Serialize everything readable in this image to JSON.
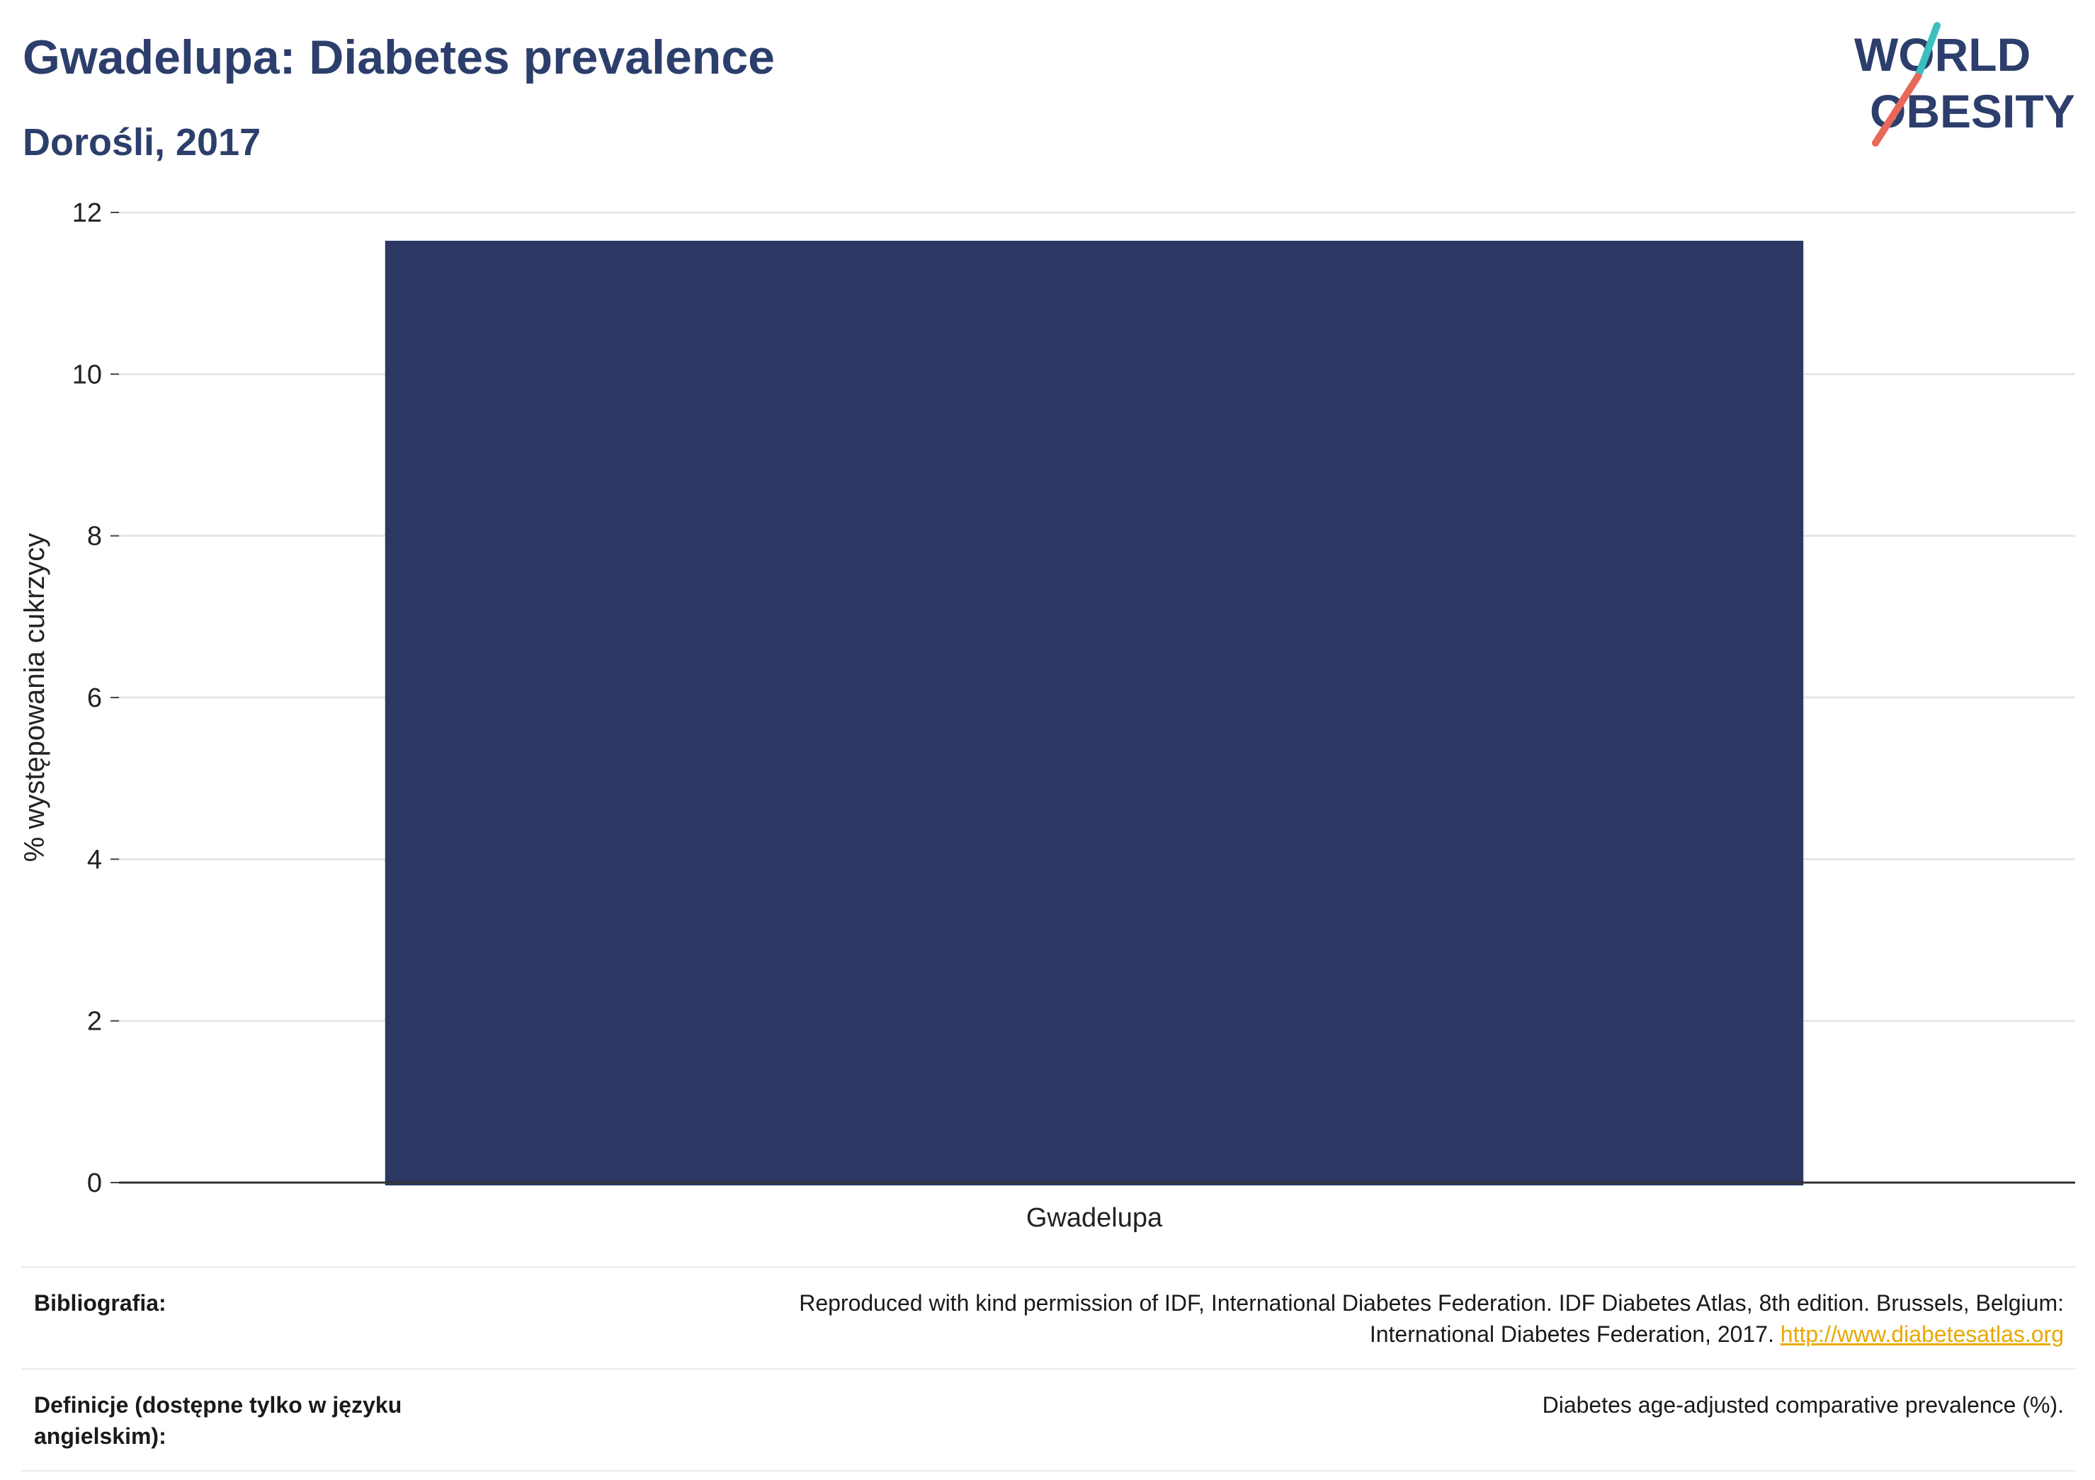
{
  "header": {
    "title": "Gwadelupa: Diabetes prevalence",
    "subtitle": "Dorośli, 2017"
  },
  "logo": {
    "line1": "WORLD",
    "line2": "OBESITY",
    "colors": {
      "text": "#2c3e6b",
      "slash_top": "#3bbfbf",
      "slash_bottom": "#e8685a"
    }
  },
  "chart_data": {
    "type": "bar",
    "categories": [
      "Gwadelupa"
    ],
    "values": [
      11.65
    ],
    "title": "",
    "xlabel": "",
    "ylabel": "% występowania cukrzycy",
    "ylim": [
      0,
      12
    ],
    "yticks": [
      "0",
      "2",
      "4",
      "6",
      "8",
      "10",
      "12"
    ],
    "grid": true,
    "bar_color": "#2c3763"
  },
  "meta": {
    "bibliography_label": "Bibliografia:",
    "bibliography_text_1": "Reproduced with kind permission of IDF, International Diabetes Federation. IDF Diabetes Atlas, 8th edition. Brussels, Belgium:",
    "bibliography_text_2": "International Diabetes Federation, 2017.",
    "bibliography_link": "http://www.diabetesatlas.org",
    "definitions_label": "Definicje (dostępne tylko w języku angielskim):",
    "definitions_text": "Diabetes age-adjusted comparative prevalence (%)."
  }
}
